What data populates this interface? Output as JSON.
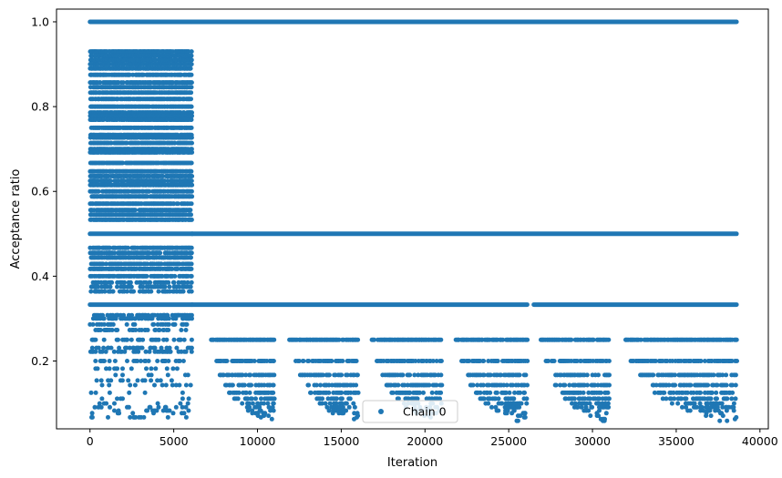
{
  "chart_data": {
    "type": "scatter",
    "title": "",
    "xlabel": "Iteration",
    "ylabel": "Acceptance ratio",
    "xlim": [
      -2000,
      40500
    ],
    "ylim": [
      0.04,
      1.03
    ],
    "xticks": [
      0,
      5000,
      10000,
      15000,
      20000,
      25000,
      30000,
      35000,
      40000
    ],
    "xtick_labels": [
      "0",
      "5000",
      "10000",
      "15000",
      "20000",
      "25000",
      "30000",
      "35000",
      "40000"
    ],
    "yticks": [
      0.2,
      0.4,
      0.6,
      0.8,
      1.0
    ],
    "ytick_labels": [
      "0.2",
      "0.4",
      "0.6",
      "0.8",
      "1.0"
    ],
    "grid": false,
    "legend": {
      "position": "lower-center",
      "entries": [
        "Chain 0"
      ]
    },
    "series": [
      {
        "name": "Chain 0",
        "color": "#1f77b4",
        "marker": "circle",
        "x_range": [
          0,
          38600
        ],
        "phases": [
          {
            "x_range": [
              0,
              6100
            ],
            "description_levels": [
              1.0,
              0.93,
              0.92,
              0.91,
              0.9,
              0.89,
              0.875,
              0.857,
              0.846,
              0.833,
              0.818,
              0.8,
              0.786,
              0.778,
              0.769,
              0.75,
              0.733,
              0.727,
              0.714,
              0.7,
              0.692,
              0.667,
              0.647,
              0.636,
              0.625,
              0.615,
              0.6,
              0.588,
              0.571,
              0.556,
              0.545,
              0.533,
              0.5,
              0.467,
              0.455,
              0.444,
              0.429,
              0.417,
              0.4,
              0.385,
              0.375,
              0.364,
              0.333,
              0.308,
              0.3,
              0.286,
              0.273,
              0.25,
              0.231,
              0.222,
              0.2,
              0.182,
              0.167,
              0.154,
              0.143,
              0.125,
              0.111,
              0.1,
              0.091,
              0.083,
              0.077,
              0.067
            ]
          },
          {
            "x_range": [
              6100,
              38600
            ],
            "constant_levels": [
              1.0,
              0.5,
              0.333
            ],
            "burst_levels": [
              0.25,
              0.2,
              0.167,
              0.143,
              0.125,
              0.111,
              0.1,
              0.091,
              0.083,
              0.077,
              0.071,
              0.067,
              0.063,
              0.059
            ],
            "burst_segments": [
              [
                7200,
                11000
              ],
              [
                11900,
                16000
              ],
              [
                16800,
                21000
              ],
              [
                21800,
                26100
              ],
              [
                26900,
                31000
              ],
              [
                31800,
                38600
              ]
            ]
          }
        ]
      }
    ]
  }
}
